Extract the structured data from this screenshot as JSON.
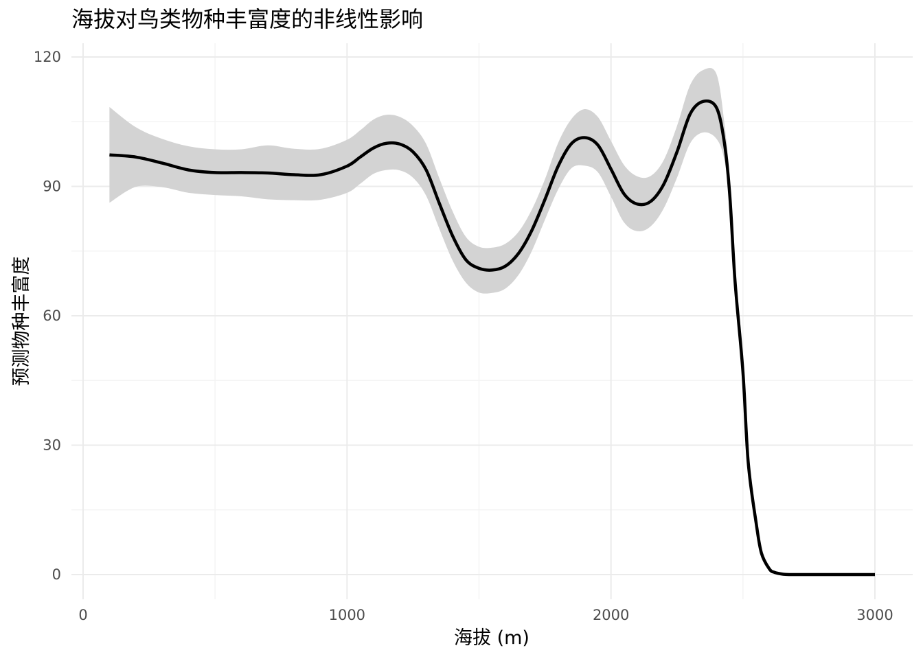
{
  "chart_data": {
    "type": "line",
    "title": "海拔对鸟类物种丰富度的非线性影响",
    "xlabel": "海拔 (m)",
    "ylabel": "预测物种丰富度",
    "xlim": [
      0,
      3000
    ],
    "ylim": [
      0,
      120
    ],
    "x_ticks": [
      0,
      1000,
      2000,
      3000
    ],
    "y_ticks": [
      0,
      30,
      60,
      90,
      120
    ],
    "x_tick_labels": [
      "0",
      "1000",
      "2000",
      "3000"
    ],
    "y_tick_labels": [
      "0",
      "30",
      "60",
      "90",
      "120"
    ],
    "grid": true,
    "legend": "none",
    "colors": {
      "line": "#000000",
      "ribbon": "#d3d3d3",
      "grid_major": "#ebebeb",
      "grid_minor": "#f4f4f4",
      "background": "#ffffff"
    },
    "series": [
      {
        "x": [
          100,
          200,
          300,
          400,
          500,
          600,
          700,
          800,
          900,
          1000,
          1050,
          1100,
          1150,
          1200,
          1250,
          1300,
          1350,
          1400,
          1450,
          1500,
          1550,
          1600,
          1650,
          1700,
          1750,
          1800,
          1850,
          1900,
          1950,
          2000,
          2050,
          2100,
          2150,
          2200,
          2250,
          2300,
          2350,
          2400,
          2430,
          2450,
          2470,
          2500,
          2520,
          2550,
          2570,
          2600,
          2620,
          2650,
          2680,
          2700,
          2750,
          2800,
          2900,
          3000
        ],
        "fit": [
          97.3,
          96.8,
          95.4,
          93.8,
          93.2,
          93.2,
          93.1,
          92.7,
          92.7,
          94.7,
          96.8,
          98.9,
          100.0,
          99.8,
          98.0,
          93.8,
          86.0,
          78.5,
          73.0,
          71.0,
          70.6,
          71.5,
          74.5,
          79.8,
          87.0,
          94.7,
          99.9,
          101.3,
          99.6,
          94.0,
          88.2,
          85.9,
          86.5,
          90.5,
          98.0,
          106.8,
          109.7,
          108.2,
          100.0,
          88.0,
          68.0,
          47.0,
          26.0,
          12.0,
          5.0,
          1.3,
          0.5,
          0.1,
          0.0,
          0.0,
          0.0,
          0.0,
          0.0,
          0.0
        ],
        "lower": [
          86.2,
          89.9,
          89.8,
          88.5,
          88.0,
          87.7,
          87.0,
          86.8,
          86.9,
          88.5,
          90.6,
          92.9,
          93.8,
          93.7,
          92.0,
          87.8,
          80.1,
          72.8,
          67.7,
          65.4,
          65.3,
          66.3,
          69.5,
          75.0,
          82.3,
          89.3,
          94.2,
          94.8,
          93.3,
          87.6,
          81.6,
          79.6,
          80.7,
          84.9,
          92.0,
          100.0,
          102.5,
          101.0,
          96.0,
          85.0,
          65.0,
          44.5,
          24.0,
          10.5,
          4.0,
          0.8,
          0.2,
          0.0,
          0.0,
          0.0,
          0.0,
          0.0,
          0.0,
          0.0
        ],
        "upper": [
          108.4,
          103.7,
          101.0,
          99.3,
          98.6,
          98.6,
          99.5,
          98.7,
          98.7,
          100.8,
          103.0,
          105.5,
          106.6,
          106.1,
          104.0,
          99.8,
          91.8,
          84.2,
          78.3,
          76.0,
          75.8,
          76.7,
          79.5,
          84.6,
          91.7,
          100.1,
          105.6,
          107.9,
          106.1,
          100.5,
          94.9,
          92.3,
          92.4,
          96.1,
          104.0,
          113.5,
          117.0,
          116.0,
          104.5,
          91.5,
          71.0,
          49.5,
          28.0,
          13.5,
          6.0,
          1.8,
          0.7,
          0.2,
          0.0,
          0.0,
          0.0,
          0.0,
          0.0,
          0.0
        ]
      }
    ]
  }
}
